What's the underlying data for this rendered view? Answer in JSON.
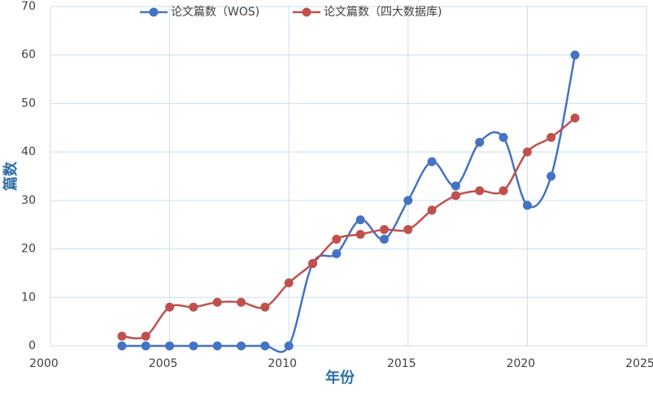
{
  "chart_data": {
    "type": "line",
    "x_label": "年份",
    "y_label": "篇数",
    "x": [
      2003,
      2004,
      2005,
      2006,
      2007,
      2008,
      2009,
      2010,
      2011,
      2012,
      2013,
      2014,
      2015,
      2016,
      2017,
      2018,
      2019,
      2020,
      2021,
      2022
    ],
    "series": [
      {
        "name": "论文篇数（WOS)",
        "color": "#4472c4",
        "values": [
          0,
          0,
          0,
          0,
          0,
          0,
          0,
          0,
          17,
          19,
          26,
          22,
          30,
          38,
          33,
          42,
          43,
          29,
          35,
          60
        ]
      },
      {
        "name": "论文篇数（四大数据库)",
        "color": "#c0504d",
        "values": [
          2,
          2,
          8,
          8,
          9,
          9,
          8,
          13,
          17,
          22,
          23,
          24,
          24,
          28,
          31,
          32,
          32,
          40,
          43,
          47
        ]
      }
    ],
    "xlim": [
      2000,
      2025
    ],
    "xticks": [
      2000,
      2005,
      2010,
      2015,
      2020,
      2025
    ],
    "ylim": [
      0,
      70
    ],
    "yticks": [
      0,
      10,
      20,
      30,
      40,
      50,
      60,
      70
    ],
    "grid": true,
    "legend": "top",
    "smooth": true
  }
}
